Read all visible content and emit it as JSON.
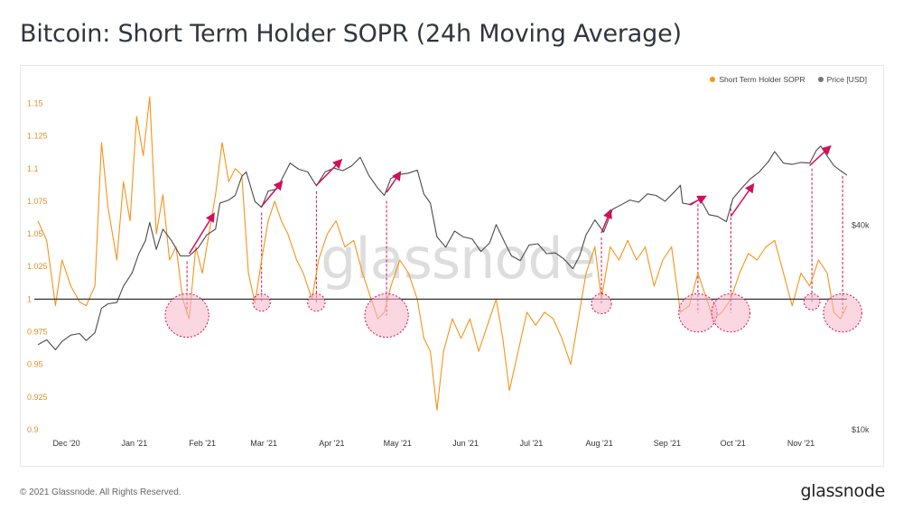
{
  "title": "Bitcoin: Short Term Holder SOPR (24h Moving Average)",
  "footer": {
    "copyright": "© 2021 Glassnode. All Rights Reserved.",
    "logo": "glassnode"
  },
  "watermark": "glassnode",
  "colors": {
    "sopr": "#f7931a",
    "price": "#4a4a4a",
    "annotation": "#d1105a",
    "baseline": "#333333",
    "circle_fill": "#f8b6c8"
  },
  "chart_data": {
    "type": "line",
    "title": "Bitcoin: Short Term Holder SOPR (24h Moving Average)",
    "legend_position": "top-right",
    "legend": [
      "Short Term Holder SOPR",
      "Price [USD]"
    ],
    "x_range": [
      "2020-11-18",
      "2021-11-22"
    ],
    "x_ticks": [
      {
        "date": "2020-12-01",
        "label": "Dec '20"
      },
      {
        "date": "2021-01-01",
        "label": "Jan '21"
      },
      {
        "date": "2021-02-01",
        "label": "Feb '21"
      },
      {
        "date": "2021-03-01",
        "label": "Mar '21"
      },
      {
        "date": "2021-04-01",
        "label": "Apr '21"
      },
      {
        "date": "2021-05-01",
        "label": "May '21"
      },
      {
        "date": "2021-06-01",
        "label": "Jun '21"
      },
      {
        "date": "2021-07-01",
        "label": "Jul '21"
      },
      {
        "date": "2021-08-01",
        "label": "Aug '21"
      },
      {
        "date": "2021-09-01",
        "label": "Sep '21"
      },
      {
        "date": "2021-10-01",
        "label": "Oct '21"
      },
      {
        "date": "2021-11-01",
        "label": "Nov '21"
      }
    ],
    "y_left": {
      "ylim": [
        0.9,
        1.16
      ],
      "ticks": [
        0.9,
        0.925,
        0.95,
        0.975,
        1,
        1.025,
        1.05,
        1.075,
        1.1,
        1.125,
        1.15
      ],
      "tick_labels": [
        "0.9",
        "0.925",
        "0.95",
        "0.975",
        "1",
        "1.025",
        "1.05",
        "1.075",
        "1.1",
        "1.125",
        "1.15"
      ]
    },
    "y_right": {
      "scale": "log",
      "ylim": [
        10000,
        100000
      ],
      "ticks": [
        10000,
        40000
      ],
      "tick_labels": [
        "$10k",
        "$40k"
      ]
    },
    "baseline": 1,
    "series": [
      {
        "name": "Short Term Holder SOPR",
        "axis": "left",
        "points": [
          [
            "2020-11-18",
            1.06
          ],
          [
            "2020-11-22",
            1.045
          ],
          [
            "2020-11-26",
            0.995
          ],
          [
            "2020-11-29",
            1.03
          ],
          [
            "2020-12-03",
            1.01
          ],
          [
            "2020-12-07",
            0.998
          ],
          [
            "2020-12-10",
            0.995
          ],
          [
            "2020-12-14",
            1.01
          ],
          [
            "2020-12-17",
            1.12
          ],
          [
            "2020-12-20",
            1.07
          ],
          [
            "2020-12-24",
            1.03
          ],
          [
            "2020-12-27",
            1.09
          ],
          [
            "2020-12-30",
            1.06
          ],
          [
            "2021-01-02",
            1.14
          ],
          [
            "2021-01-05",
            1.11
          ],
          [
            "2021-01-08",
            1.155
          ],
          [
            "2021-01-11",
            1.05
          ],
          [
            "2021-01-14",
            1.08
          ],
          [
            "2021-01-17",
            1.03
          ],
          [
            "2021-01-20",
            1.04
          ],
          [
            "2021-01-23",
            1.0
          ],
          [
            "2021-01-26",
            0.985
          ],
          [
            "2021-01-29",
            1.04
          ],
          [
            "2021-02-01",
            1.02
          ],
          [
            "2021-02-04",
            1.05
          ],
          [
            "2021-02-07",
            1.08
          ],
          [
            "2021-02-10",
            1.12
          ],
          [
            "2021-02-13",
            1.09
          ],
          [
            "2021-02-16",
            1.1
          ],
          [
            "2021-02-19",
            1.095
          ],
          [
            "2021-02-22",
            1.02
          ],
          [
            "2021-02-25",
            0.997
          ],
          [
            "2021-02-28",
            1.03
          ],
          [
            "2021-03-03",
            1.06
          ],
          [
            "2021-03-06",
            1.075
          ],
          [
            "2021-03-09",
            1.06
          ],
          [
            "2021-03-12",
            1.05
          ],
          [
            "2021-03-16",
            1.03
          ],
          [
            "2021-03-19",
            1.02
          ],
          [
            "2021-03-23",
            1.0
          ],
          [
            "2021-03-26",
            1.03
          ],
          [
            "2021-03-30",
            1.05
          ],
          [
            "2021-04-03",
            1.06
          ],
          [
            "2021-04-07",
            1.04
          ],
          [
            "2021-04-11",
            1.045
          ],
          [
            "2021-04-15",
            1.02
          ],
          [
            "2021-04-19",
            1.0
          ],
          [
            "2021-04-22",
            0.985
          ],
          [
            "2021-04-25",
            0.99
          ],
          [
            "2021-04-28",
            1.01
          ],
          [
            "2021-05-02",
            1.03
          ],
          [
            "2021-05-06",
            1.02
          ],
          [
            "2021-05-10",
            1.0
          ],
          [
            "2021-05-13",
            0.97
          ],
          [
            "2021-05-16",
            0.96
          ],
          [
            "2021-05-19",
            0.915
          ],
          [
            "2021-05-22",
            0.96
          ],
          [
            "2021-05-26",
            0.985
          ],
          [
            "2021-05-30",
            0.97
          ],
          [
            "2021-06-03",
            0.985
          ],
          [
            "2021-06-07",
            0.96
          ],
          [
            "2021-06-11",
            0.98
          ],
          [
            "2021-06-15",
            1.0
          ],
          [
            "2021-06-18",
            0.97
          ],
          [
            "2021-06-21",
            0.93
          ],
          [
            "2021-06-25",
            0.96
          ],
          [
            "2021-06-29",
            0.99
          ],
          [
            "2021-07-03",
            0.98
          ],
          [
            "2021-07-07",
            0.99
          ],
          [
            "2021-07-11",
            0.985
          ],
          [
            "2021-07-15",
            0.97
          ],
          [
            "2021-07-19",
            0.95
          ],
          [
            "2021-07-22",
            0.98
          ],
          [
            "2021-07-26",
            1.02
          ],
          [
            "2021-07-30",
            1.04
          ],
          [
            "2021-08-02",
            1.0
          ],
          [
            "2021-08-06",
            1.04
          ],
          [
            "2021-08-10",
            1.03
          ],
          [
            "2021-08-14",
            1.045
          ],
          [
            "2021-08-18",
            1.03
          ],
          [
            "2021-08-22",
            1.04
          ],
          [
            "2021-08-26",
            1.01
          ],
          [
            "2021-08-30",
            1.03
          ],
          [
            "2021-09-03",
            1.04
          ],
          [
            "2021-09-07",
            0.99
          ],
          [
            "2021-09-11",
            0.995
          ],
          [
            "2021-09-15",
            1.02
          ],
          [
            "2021-09-19",
            1.0
          ],
          [
            "2021-09-22",
            0.985
          ],
          [
            "2021-09-26",
            0.99
          ],
          [
            "2021-09-30",
            1.0
          ],
          [
            "2021-10-04",
            1.02
          ],
          [
            "2021-10-08",
            1.035
          ],
          [
            "2021-10-12",
            1.03
          ],
          [
            "2021-10-16",
            1.04
          ],
          [
            "2021-10-20",
            1.045
          ],
          [
            "2021-10-24",
            1.02
          ],
          [
            "2021-10-28",
            0.995
          ],
          [
            "2021-11-01",
            1.02
          ],
          [
            "2021-11-05",
            1.01
          ],
          [
            "2021-11-09",
            1.03
          ],
          [
            "2021-11-13",
            1.02
          ],
          [
            "2021-11-16",
            0.99
          ],
          [
            "2021-11-19",
            0.985
          ],
          [
            "2021-11-22",
            0.995
          ]
        ]
      },
      {
        "name": "Price [USD]",
        "axis": "right",
        "points": [
          [
            "2020-11-18",
            17800
          ],
          [
            "2020-11-22",
            18400
          ],
          [
            "2020-11-26",
            17200
          ],
          [
            "2020-11-29",
            18200
          ],
          [
            "2020-12-03",
            19000
          ],
          [
            "2020-12-07",
            19200
          ],
          [
            "2020-12-10",
            18300
          ],
          [
            "2020-12-14",
            19300
          ],
          [
            "2020-12-17",
            22800
          ],
          [
            "2020-12-20",
            23500
          ],
          [
            "2020-12-24",
            23700
          ],
          [
            "2020-12-27",
            26500
          ],
          [
            "2020-12-31",
            29000
          ],
          [
            "2021-01-03",
            33000
          ],
          [
            "2021-01-06",
            36000
          ],
          [
            "2021-01-08",
            40800
          ],
          [
            "2021-01-11",
            34000
          ],
          [
            "2021-01-14",
            39000
          ],
          [
            "2021-01-18",
            36000
          ],
          [
            "2021-01-22",
            32500
          ],
          [
            "2021-01-26",
            32500
          ],
          [
            "2021-01-30",
            34300
          ],
          [
            "2021-02-03",
            37500
          ],
          [
            "2021-02-07",
            39000
          ],
          [
            "2021-02-09",
            46500
          ],
          [
            "2021-02-13",
            47500
          ],
          [
            "2021-02-16",
            49000
          ],
          [
            "2021-02-19",
            55800
          ],
          [
            "2021-02-21",
            57500
          ],
          [
            "2021-02-25",
            47000
          ],
          [
            "2021-02-28",
            45200
          ],
          [
            "2021-03-03",
            50500
          ],
          [
            "2021-03-07",
            51200
          ],
          [
            "2021-03-10",
            56000
          ],
          [
            "2021-03-13",
            61000
          ],
          [
            "2021-03-17",
            58500
          ],
          [
            "2021-03-21",
            57500
          ],
          [
            "2021-03-25",
            52300
          ],
          [
            "2021-03-29",
            57500
          ],
          [
            "2021-04-02",
            59000
          ],
          [
            "2021-04-06",
            58000
          ],
          [
            "2021-04-10",
            59800
          ],
          [
            "2021-04-14",
            63500
          ],
          [
            "2021-04-18",
            56000
          ],
          [
            "2021-04-22",
            51500
          ],
          [
            "2021-04-25",
            49000
          ],
          [
            "2021-04-28",
            55000
          ],
          [
            "2021-05-02",
            56500
          ],
          [
            "2021-05-06",
            57000
          ],
          [
            "2021-05-10",
            58200
          ],
          [
            "2021-05-13",
            49500
          ],
          [
            "2021-05-16",
            46500
          ],
          [
            "2021-05-19",
            37000
          ],
          [
            "2021-05-23",
            34500
          ],
          [
            "2021-05-27",
            38500
          ],
          [
            "2021-05-31",
            37000
          ],
          [
            "2021-06-04",
            36500
          ],
          [
            "2021-06-08",
            33500
          ],
          [
            "2021-06-12",
            35500
          ],
          [
            "2021-06-15",
            40200
          ],
          [
            "2021-06-19",
            35500
          ],
          [
            "2021-06-22",
            32500
          ],
          [
            "2021-06-26",
            31500
          ],
          [
            "2021-06-30",
            35000
          ],
          [
            "2021-07-04",
            35300
          ],
          [
            "2021-07-08",
            33000
          ],
          [
            "2021-07-12",
            33200
          ],
          [
            "2021-07-16",
            31800
          ],
          [
            "2021-07-20",
            29800
          ],
          [
            "2021-07-23",
            32500
          ],
          [
            "2021-07-26",
            37500
          ],
          [
            "2021-07-30",
            41500
          ],
          [
            "2021-08-03",
            38200
          ],
          [
            "2021-08-07",
            44600
          ],
          [
            "2021-08-11",
            46000
          ],
          [
            "2021-08-15",
            47500
          ],
          [
            "2021-08-19",
            46800
          ],
          [
            "2021-08-23",
            49500
          ],
          [
            "2021-08-27",
            49000
          ],
          [
            "2021-08-31",
            47100
          ],
          [
            "2021-09-04",
            50000
          ],
          [
            "2021-09-07",
            52500
          ],
          [
            "2021-09-08",
            46500
          ],
          [
            "2021-09-12",
            46000
          ],
          [
            "2021-09-16",
            48000
          ],
          [
            "2021-09-20",
            43000
          ],
          [
            "2021-09-24",
            42500
          ],
          [
            "2021-09-28",
            41000
          ],
          [
            "2021-10-01",
            48000
          ],
          [
            "2021-10-05",
            51500
          ],
          [
            "2021-10-09",
            54900
          ],
          [
            "2021-10-13",
            57500
          ],
          [
            "2021-10-17",
            61500
          ],
          [
            "2021-10-20",
            66000
          ],
          [
            "2021-10-24",
            61000
          ],
          [
            "2021-10-28",
            60500
          ],
          [
            "2021-11-01",
            61300
          ],
          [
            "2021-11-05",
            61000
          ],
          [
            "2021-11-08",
            66500
          ],
          [
            "2021-11-10",
            68500
          ],
          [
            "2021-11-13",
            64000
          ],
          [
            "2021-11-16",
            60000
          ],
          [
            "2021-11-19",
            58000
          ],
          [
            "2021-11-22",
            56200
          ]
        ]
      }
    ],
    "annotations": {
      "circles": [
        {
          "date": "2021-01-25",
          "sopr": 0.9875
        },
        {
          "date": "2021-02-28",
          "sopr": 0.9975
        },
        {
          "date": "2021-03-25",
          "sopr": 0.9975
        },
        {
          "date": "2021-04-26",
          "sopr": 0.9875
        },
        {
          "date": "2021-08-02",
          "sopr": 0.9965
        },
        {
          "date": "2021-09-15",
          "sopr": 0.9895
        },
        {
          "date": "2021-09-30",
          "sopr": 0.9895
        },
        {
          "date": "2021-11-06",
          "sopr": 0.998
        },
        {
          "date": "2021-11-20",
          "sopr": 0.9895
        }
      ],
      "arrows": [
        {
          "from": [
            "2021-01-26",
            33000
          ],
          "to": [
            "2021-02-06",
            43000
          ]
        },
        {
          "from": [
            "2021-02-28",
            45500
          ],
          "to": [
            "2021-03-09",
            53500
          ]
        },
        {
          "from": [
            "2021-03-25",
            52500
          ],
          "to": [
            "2021-04-05",
            62000
          ]
        },
        {
          "from": [
            "2021-04-26",
            50000
          ],
          "to": [
            "2021-05-02",
            57000
          ]
        },
        {
          "from": [
            "2021-08-02",
            38000
          ],
          "to": [
            "2021-08-06",
            44000
          ]
        },
        {
          "from": [
            "2021-09-11",
            46000
          ],
          "to": [
            "2021-09-18",
            48500
          ]
        },
        {
          "from": [
            "2021-09-30",
            42500
          ],
          "to": [
            "2021-10-10",
            52500
          ]
        },
        {
          "from": [
            "2021-11-05",
            60000
          ],
          "to": [
            "2021-11-14",
            68000
          ]
        }
      ]
    }
  }
}
